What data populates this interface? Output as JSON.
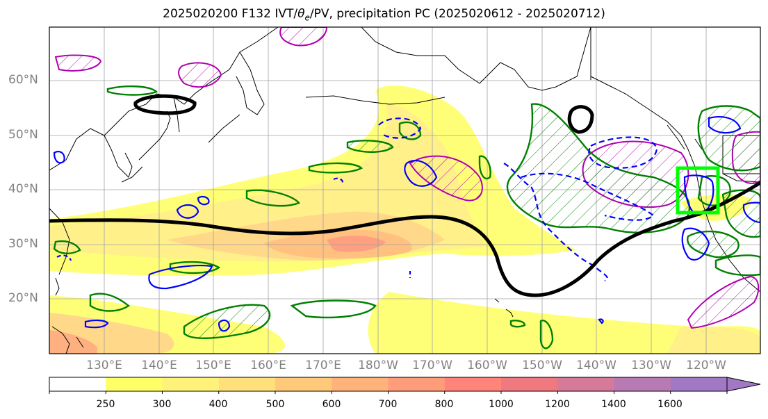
{
  "title": {
    "prefix": "2025020200 F132 IVT/",
    "theta": "θ",
    "theta_sub": "e",
    "suffix": "/PV, precipitation PC (2025020612 - 2025020712)"
  },
  "map": {
    "lat_labels": [
      "60°N",
      "50°N",
      "40°N",
      "30°N",
      "20°N"
    ],
    "lon_labels": [
      "130°E",
      "140°E",
      "150°E",
      "160°E",
      "170°E",
      "180°W",
      "170°W",
      "160°W",
      "150°W",
      "140°W",
      "130°W",
      "120°W"
    ],
    "lat_range": [
      10,
      70
    ],
    "lon_range": [
      120,
      250
    ],
    "highlight_box": {
      "lat": [
        36,
        44
      ],
      "lon": [
        235.5,
        243
      ],
      "color": "#00ff00"
    }
  },
  "colorbar": {
    "ticks": [
      "250",
      "300",
      "400",
      "500",
      "600",
      "700",
      "800",
      "1000",
      "1200",
      "1400",
      "1600"
    ],
    "colors": [
      "#ffffff",
      "#ffff66",
      "#fff27a",
      "#ffe07a",
      "#ffc97a",
      "#ffb27a",
      "#ff9c7a",
      "#ff857a",
      "#f0787f",
      "#d67a99",
      "#b87ab3",
      "#a078c4"
    ],
    "extend": "max"
  },
  "legend_colors": {
    "ivt_fill": "#ffee66",
    "jet": "#000000",
    "theta_e": "#008000",
    "pv_pos": "#b000b0",
    "pv_neg": "#0000ff"
  }
}
